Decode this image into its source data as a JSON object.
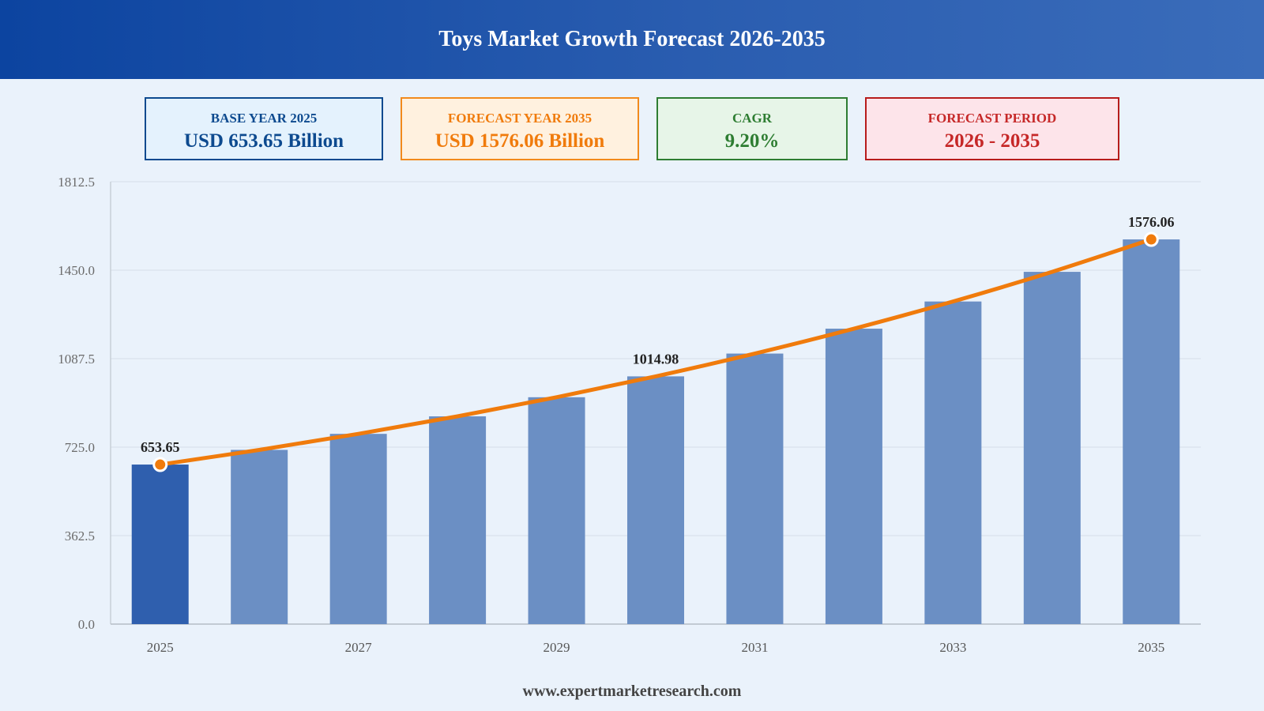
{
  "header": {
    "title": "Toys Market Growth Forecast 2026-2035"
  },
  "cards": {
    "base": {
      "label": "BASE YEAR 2025",
      "value": "USD 653.65 Billion"
    },
    "forecast": {
      "label": "FORECAST YEAR 2035",
      "value": "USD 1576.06 Billion"
    },
    "cagr": {
      "label": "CAGR",
      "value": "9.20%"
    },
    "period": {
      "label": "FORECAST PERIOD",
      "value": "2026 - 2035"
    }
  },
  "footer": {
    "url": "www.expertmarketresearch.com"
  },
  "colors": {
    "base_bar": "#2f5fae",
    "forecast_bar": "#6b8fc4",
    "trend_line": "#f07b0c",
    "grid": "#d6dfe9",
    "axis_text": "#6b6b6b"
  },
  "chart_data": {
    "type": "bar",
    "categories": [
      "2025",
      "2026",
      "2027",
      "2028",
      "2029",
      "2030",
      "2031",
      "2032",
      "2033",
      "2034",
      "2035"
    ],
    "x_tick_labels": [
      "2025",
      "",
      "2027",
      "",
      "2029",
      "",
      "2031",
      "",
      "2033",
      "",
      "2035"
    ],
    "values": [
      653.65,
      713.78,
      779.45,
      851.16,
      929.47,
      1014.98,
      1108.36,
      1210.33,
      1321.68,
      1443.27,
      1576.06
    ],
    "data_labels": [
      {
        "index": 0,
        "text": "653.65"
      },
      {
        "index": 5,
        "text": "1014.98"
      },
      {
        "index": 10,
        "text": "1576.06"
      }
    ],
    "trend_line": {
      "type": "line",
      "values": [
        653.65,
        713.78,
        779.45,
        851.16,
        929.47,
        1014.98,
        1108.36,
        1210.33,
        1321.68,
        1443.27,
        1576.06
      ],
      "markers_at": [
        0,
        10
      ]
    },
    "y_ticks": [
      "0.0",
      "362.5",
      "725.0",
      "1087.5",
      "1450.0",
      "1812.5"
    ],
    "ylim": [
      0,
      1812.5
    ],
    "grid": true,
    "title": "",
    "xlabel": "",
    "ylabel": ""
  }
}
